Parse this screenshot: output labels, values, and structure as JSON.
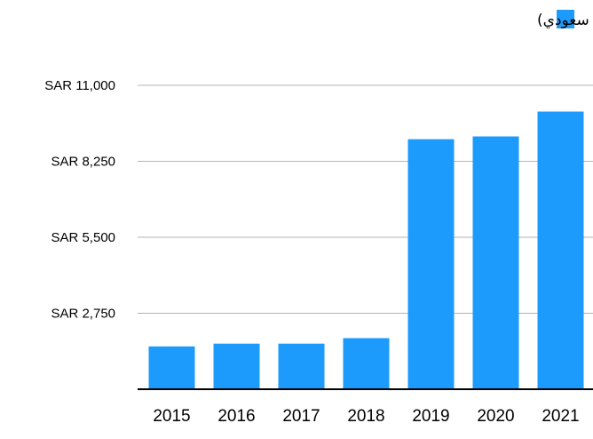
{
  "chart_data": {
    "type": "bar",
    "title": "",
    "xlabel": "",
    "ylabel": "",
    "categories": [
      "2015",
      "2016",
      "2017",
      "2018",
      "2019",
      "2020",
      "2021"
    ],
    "series": [
      {
        "name": "القيمة السوقية للأسهم المصدرة (مليار ريال سعودي)",
        "color": "#1C9BFC",
        "values": [
          1550,
          1650,
          1650,
          1850,
          9050,
          9150,
          10050
        ]
      }
    ],
    "ylim": [
      0,
      11000
    ],
    "yticks": [
      {
        "value": 2750,
        "label": "SAR 2,750"
      },
      {
        "value": 5500,
        "label": "SAR 5,500"
      },
      {
        "value": 8250,
        "label": "SAR 8,250"
      },
      {
        "value": 11000,
        "label": "SAR 11,000"
      }
    ],
    "grid": true,
    "legend_position": "top"
  },
  "colors": {
    "bar": "#1C9BFC",
    "grid": "#b3b3b3",
    "axis": "#000000"
  }
}
